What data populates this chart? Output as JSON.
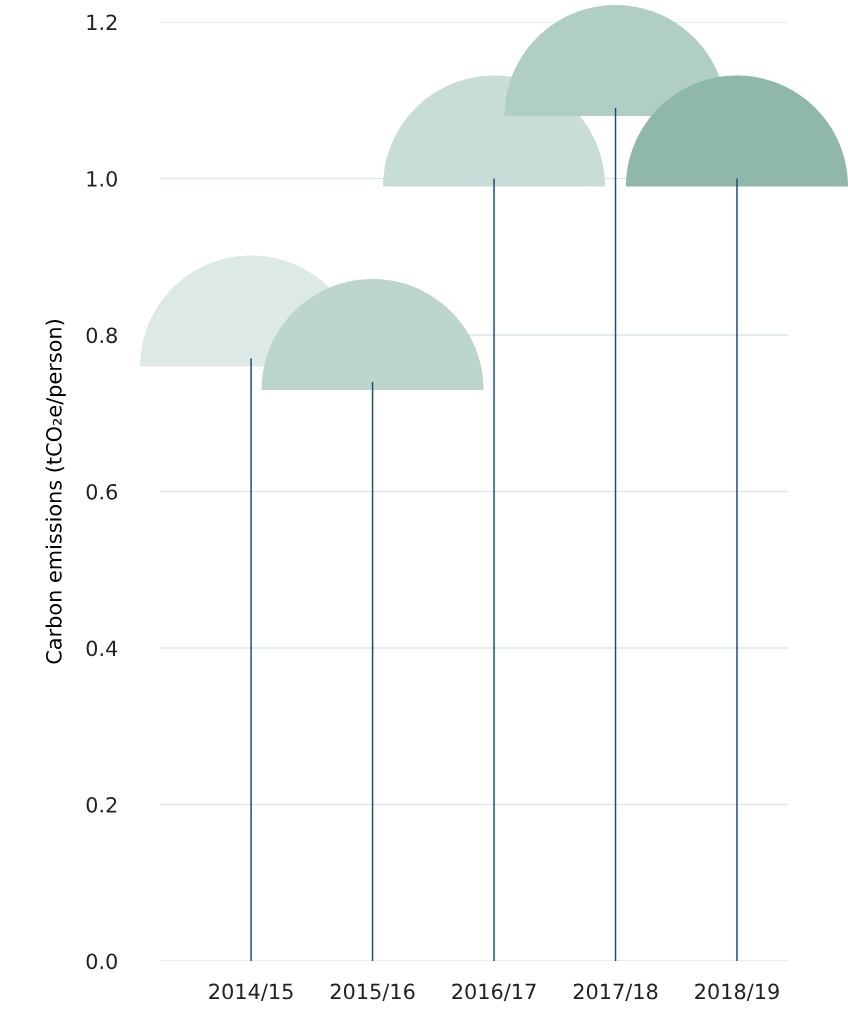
{
  "chart_data": {
    "type": "bar",
    "ylabel": "Carbon emissions (tCO₂e/person)",
    "categories": [
      "2014/15",
      "2015/16",
      "2016/17",
      "2017/18",
      "2018/19"
    ],
    "values": [
      0.77,
      0.74,
      1.0,
      1.09,
      1.0
    ],
    "color": "#1f4e79",
    "ylim": [
      0,
      1.2
    ],
    "yticks": [
      {
        "value": 0,
        "label": "0.0"
      },
      {
        "value": 0.2,
        "label": "0.2"
      },
      {
        "value": 0.4,
        "label": "0.4"
      },
      {
        "value": 0.6,
        "label": "0.6"
      },
      {
        "value": 0.8,
        "label": "0.8"
      },
      {
        "value": 1.0,
        "label": "1.0"
      },
      {
        "value": 1.2,
        "label": "1.2"
      }
    ],
    "grid": "y"
  }
}
